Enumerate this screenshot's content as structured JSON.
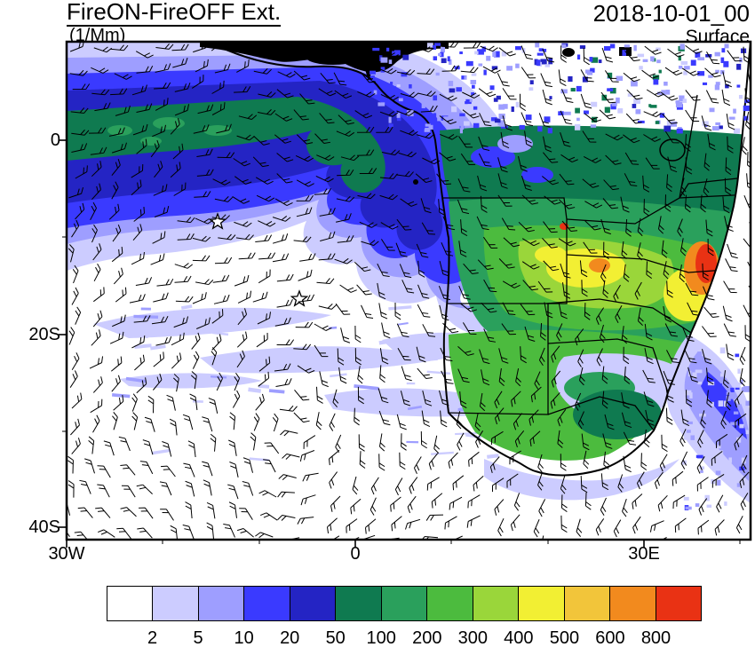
{
  "header": {
    "title": "FireON-FireOFF Ext.",
    "units": "(1/Mm)",
    "datetime": "2018-10-01_00",
    "level": "Surface"
  },
  "axes": {
    "y_ticks": [
      "0",
      "20S",
      "40S"
    ],
    "x_ticks": [
      "30W",
      "0",
      "30E"
    ]
  },
  "colorbar": {
    "tick_labels": [
      "2",
      "5",
      "10",
      "20",
      "50",
      "100",
      "200",
      "300",
      "400",
      "500",
      "600",
      "800"
    ],
    "colors": [
      "#ffffff",
      "#ccccff",
      "#9e9eff",
      "#3a3aff",
      "#2424c4",
      "#0f7a50",
      "#2aa05c",
      "#4cbb3e",
      "#9ad63a",
      "#f2ef33",
      "#f2c53a",
      "#f28a1e",
      "#e93214"
    ]
  },
  "chart_data": {
    "type": "heatmap",
    "title": "FireON-FireOFF Ext.",
    "units": "1/Mm",
    "time": "2018-10-01_00",
    "level": "Surface",
    "x_ticks": [
      "30W",
      "0",
      "30E"
    ],
    "y_ticks": [
      "0",
      "20S",
      "40S"
    ],
    "contour_levels": [
      2,
      5,
      10,
      20,
      50,
      100,
      200,
      300,
      400,
      500,
      600,
      800
    ],
    "palette": [
      "#ffffff",
      "#ccccff",
      "#9e9eff",
      "#3a3aff",
      "#2424c4",
      "#0f7a50",
      "#2aa05c",
      "#4cbb3e",
      "#9ad63a",
      "#f2ef33",
      "#f2c53a",
      "#f28a1e",
      "#e93214"
    ]
  }
}
